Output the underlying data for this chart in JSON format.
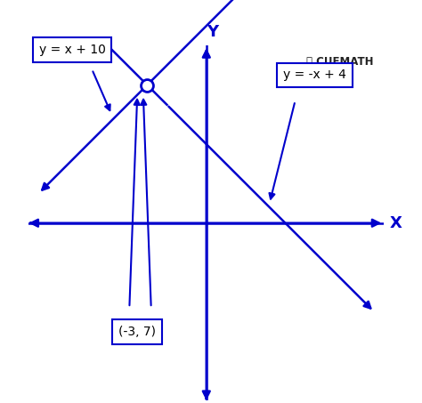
{
  "bg_color": "#ffffff",
  "line_color": "#0000cc",
  "text_color": "#000000",
  "vertex": [
    -3,
    7
  ],
  "label_vertex": "(-3, 7)",
  "label_line1": "y = x + 10",
  "label_line2": "y = -x + 4",
  "axis_label_x": "X",
  "axis_label_y": "Y",
  "cuemath_text": "CUEMATH",
  "xlim": [
    -9,
    9
  ],
  "ylim": [
    -9,
    9
  ],
  "fig_width": 4.74,
  "fig_height": 4.53,
  "dpi": 100
}
